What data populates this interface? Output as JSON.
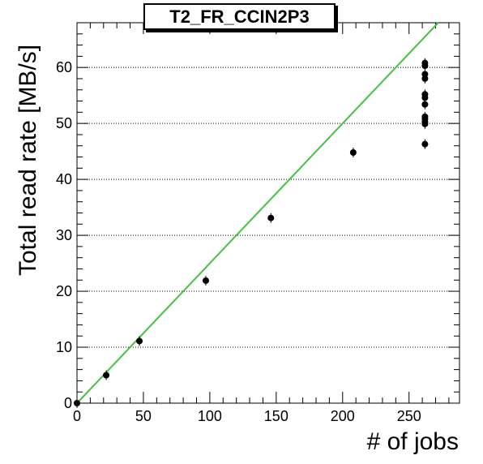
{
  "chart_data": {
    "type": "scatter",
    "title": "T2_FR_CCIN2P3",
    "xlabel": "# of jobs",
    "ylabel": "Total read rate [MB/s]",
    "xlim": [
      0,
      288
    ],
    "ylim": [
      0,
      68
    ],
    "xticks": [
      0,
      50,
      100,
      150,
      200,
      250
    ],
    "yticks": [
      0,
      10,
      20,
      30,
      40,
      50,
      60
    ],
    "grid": "horizontal-dotted",
    "points": [
      {
        "x": 0,
        "y": 0
      },
      {
        "x": 22,
        "y": 5.0
      },
      {
        "x": 47,
        "y": 11.1
      },
      {
        "x": 97,
        "y": 21.9
      },
      {
        "x": 146,
        "y": 33.1
      },
      {
        "x": 208,
        "y": 44.8
      },
      {
        "x": 262,
        "y": 46.3
      },
      {
        "x": 262,
        "y": 49.9
      },
      {
        "x": 262,
        "y": 50.3
      },
      {
        "x": 262,
        "y": 50.8
      },
      {
        "x": 262,
        "y": 51.2
      },
      {
        "x": 262,
        "y": 53.4
      },
      {
        "x": 262,
        "y": 54.6
      },
      {
        "x": 262,
        "y": 55.2
      },
      {
        "x": 262,
        "y": 58.0
      },
      {
        "x": 262,
        "y": 58.8
      },
      {
        "x": 262,
        "y": 60.3
      },
      {
        "x": 262,
        "y": 60.8
      }
    ],
    "fit_line": {
      "x": [
        0,
        272
      ],
      "y": [
        0,
        68
      ],
      "color": "#44c144"
    },
    "marker_color": "#000000"
  }
}
